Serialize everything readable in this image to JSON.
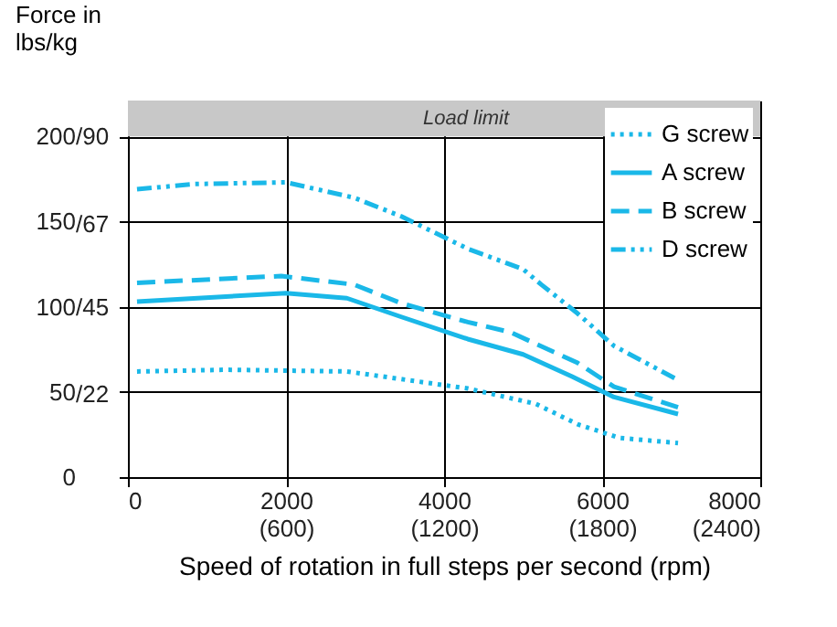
{
  "chart_data": {
    "type": "line",
    "xlabel": "Speed of rotation in full steps per second (rpm)",
    "ylabel": "Force in\nlbs/kg",
    "xlim": [
      0,
      8000
    ],
    "ylim": [
      0,
      221
    ],
    "xticks": [
      0,
      2000,
      4000,
      6000,
      8000
    ],
    "x2lim": [
      0,
      2400
    ],
    "x2ticks": [
      {
        "value": 600,
        "label": "(600)"
      },
      {
        "value": 1200,
        "label": "(1200)"
      },
      {
        "value": 1800,
        "label": "(1800)"
      },
      {
        "value": 2400,
        "label": "(2400)"
      }
    ],
    "yticks": [
      0,
      50,
      100,
      150,
      200
    ],
    "y2lim": [
      0,
      99.5
    ],
    "y2ticks": [
      {
        "value": 22,
        "label": "/22"
      },
      {
        "value": 45,
        "label": "/45"
      },
      {
        "value": 67,
        "label": "/67"
      },
      {
        "value": 90,
        "label": "/90"
      }
    ],
    "grid": true,
    "legend": "top right",
    "marker": "none",
    "bands": [
      {
        "axis": "y",
        "from": 200,
        "to": 221,
        "label": "Load limit",
        "color": "#c8c8c8"
      }
    ],
    "series": [
      {
        "name": "G screw",
        "color": "#1ab8e8",
        "line_style": "dotted",
        "x": [
          115,
          1240,
          2770,
          4300,
          5160,
          5690,
          6220,
          6960
        ],
        "values": [
          62,
          63,
          62,
          52,
          43,
          31,
          23,
          20
        ]
      },
      {
        "name": "A screw",
        "color": "#1ab8e8",
        "line_style": "solid",
        "x": [
          115,
          2000,
          2770,
          3460,
          4300,
          5000,
          5620,
          6150,
          6960
        ],
        "values": [
          103,
          108,
          105,
          94,
          81,
          72,
          59,
          47,
          37
        ]
      },
      {
        "name": "B screw",
        "color": "#1ab8e8",
        "line_style": "dashed",
        "x": [
          115,
          1940,
          2860,
          3460,
          4300,
          4840,
          5690,
          6150,
          6960
        ],
        "values": [
          114,
          118,
          113,
          102,
          91,
          85,
          67,
          53,
          41
        ]
      },
      {
        "name": "D screw",
        "color": "#1ab8e8",
        "line_style": "dashdot",
        "x": [
          115,
          850,
          2000,
          2860,
          3460,
          4300,
          5000,
          5230,
          5690,
          6150,
          6960
        ],
        "values": [
          169,
          172,
          173,
          164,
          153,
          134,
          122,
          113,
          96,
          77,
          57
        ]
      }
    ]
  }
}
